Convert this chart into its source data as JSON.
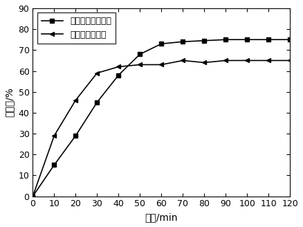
{
  "series1_label": "紫薇果纳米零价铁",
  "series2_label": "普通纳米零价铁",
  "series1_x": [
    0,
    10,
    20,
    30,
    40,
    50,
    60,
    70,
    80,
    90,
    100,
    110,
    120
  ],
  "series1_y": [
    0,
    15,
    29,
    45,
    58,
    68,
    73,
    74,
    74.5,
    75,
    75,
    75,
    75
  ],
  "series2_x": [
    0,
    10,
    20,
    30,
    40,
    50,
    60,
    70,
    80,
    90,
    100,
    110,
    120
  ],
  "series2_y": [
    0,
    29,
    46,
    59,
    62,
    63,
    63,
    65,
    64,
    65,
    65,
    65,
    65
  ],
  "xlabel": "时间/min",
  "ylabel": "去除率/%",
  "xlim": [
    0,
    120
  ],
  "ylim": [
    0,
    90
  ],
  "xticks": [
    0,
    10,
    20,
    30,
    40,
    50,
    60,
    70,
    80,
    90,
    100,
    110,
    120
  ],
  "yticks": [
    0,
    10,
    20,
    30,
    40,
    50,
    60,
    70,
    80,
    90
  ],
  "line_color": "#000000",
  "marker1": "s",
  "marker2": "<",
  "markersize": 5,
  "linewidth": 1.2,
  "legend_loc": "upper left",
  "background_color": "#ffffff",
  "font_size_label": 10,
  "font_size_tick": 9,
  "font_size_legend": 9
}
